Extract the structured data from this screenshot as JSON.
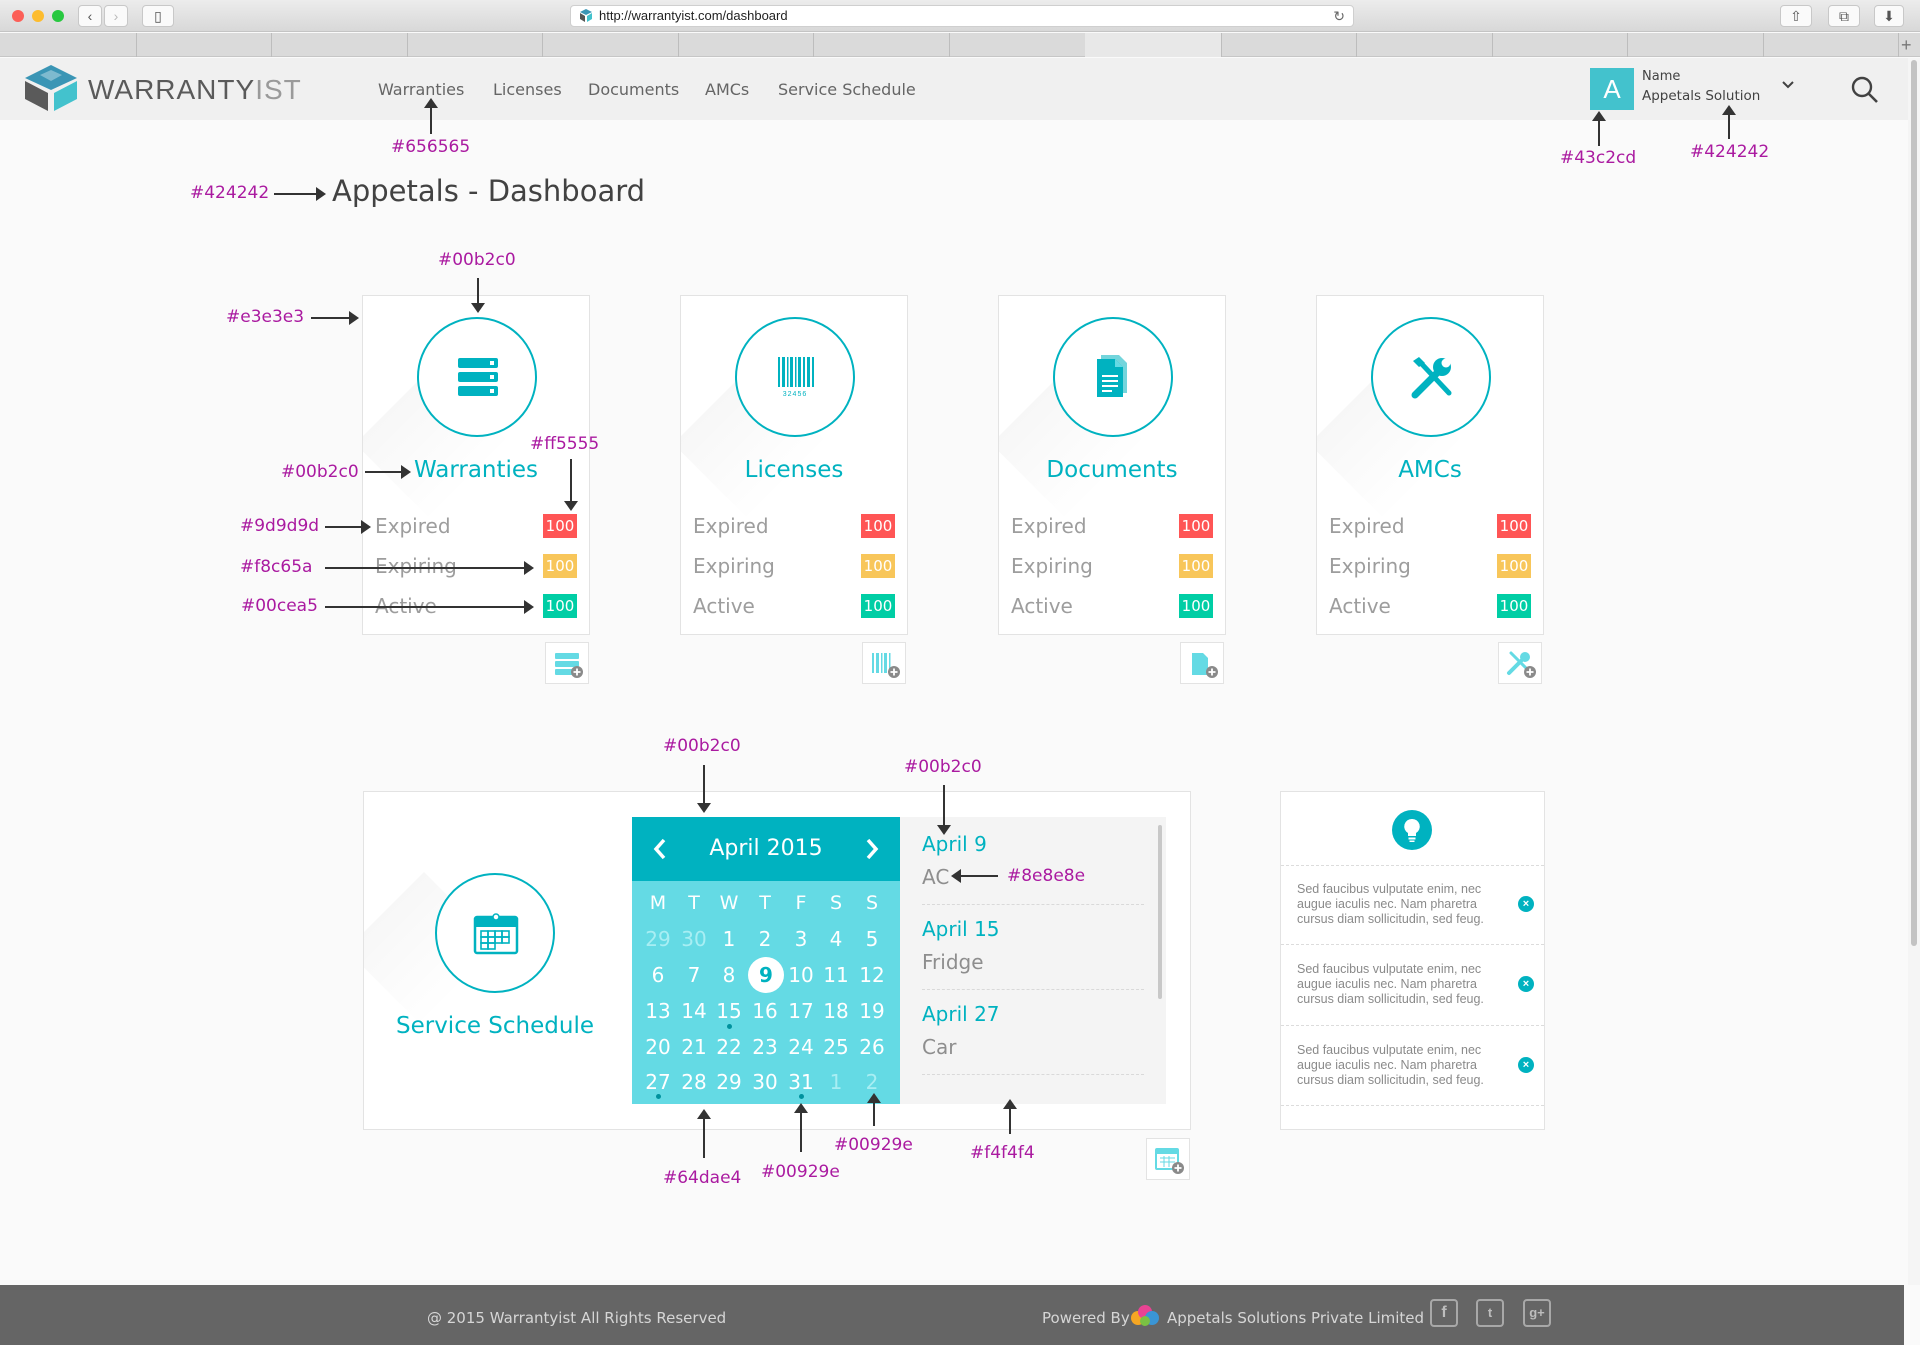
{
  "browser": {
    "url": "http://warrantyist.com/dashboard"
  },
  "brand": {
    "logo_text_bold": "WARRANTY",
    "logo_text_light": "IST"
  },
  "nav": [
    "Warranties",
    "Licenses",
    "Documents",
    "AMCs",
    "Service Schedule"
  ],
  "user": {
    "initial": "A",
    "label": "Name",
    "name": "Appetals Solution"
  },
  "page_title": "Appetals - Dashboard",
  "cards": [
    {
      "title": "Warranties",
      "icon": "server-icon",
      "stats": [
        {
          "label": "Expired",
          "value": "100"
        },
        {
          "label": "Expiring",
          "value": "100"
        },
        {
          "label": "Active",
          "value": "100"
        }
      ]
    },
    {
      "title": "Licenses",
      "icon": "barcode-icon",
      "barcode_digits": "32456",
      "stats": [
        {
          "label": "Expired",
          "value": "100"
        },
        {
          "label": "Expiring",
          "value": "100"
        },
        {
          "label": "Active",
          "value": "100"
        }
      ]
    },
    {
      "title": "Documents",
      "icon": "document-icon",
      "stats": [
        {
          "label": "Expired",
          "value": "100"
        },
        {
          "label": "Expiring",
          "value": "100"
        },
        {
          "label": "Active",
          "value": "100"
        }
      ]
    },
    {
      "title": "AMCs",
      "icon": "tools-icon",
      "stats": [
        {
          "label": "Expired",
          "value": "100"
        },
        {
          "label": "Expiring",
          "value": "100"
        },
        {
          "label": "Active",
          "value": "100"
        }
      ]
    }
  ],
  "service_schedule": {
    "title": "Service Schedule",
    "calendar": {
      "month": "April 2015",
      "weekdays": [
        "M",
        "T",
        "W",
        "T",
        "F",
        "S",
        "S"
      ],
      "weeks": [
        [
          "29",
          "30",
          "1",
          "2",
          "3",
          "4",
          "5"
        ],
        [
          "6",
          "7",
          "8",
          "9",
          "10",
          "11",
          "12"
        ],
        [
          "13",
          "14",
          "15",
          "16",
          "17",
          "18",
          "19"
        ],
        [
          "20",
          "21",
          "22",
          "23",
          "24",
          "25",
          "26"
        ],
        [
          "27",
          "28",
          "29",
          "30",
          "31",
          "1",
          "2"
        ]
      ],
      "selected": "9"
    },
    "events": [
      {
        "date": "April 9",
        "name": "AC"
      },
      {
        "date": "April 15",
        "name": "Fridge"
      },
      {
        "date": "April 27",
        "name": "Car"
      }
    ]
  },
  "tips": {
    "icon": "lightbulb-icon",
    "items": [
      "Sed faucibus vulputate enim, nec augue iaculis nec. Nam pharetra cursus diam sollicitudin, sed feug.",
      "Sed faucibus vulputate enim, nec augue iaculis nec. Nam pharetra cursus diam sollicitudin, sed feug.",
      "Sed faucibus vulputate enim, nec augue iaculis nec. Nam pharetra cursus diam sollicitudin, sed feug."
    ]
  },
  "annotations": {
    "nav_color": "#656565",
    "avatar_color": "#43c2cd",
    "username_color": "#424242",
    "title_color": "#424242",
    "icon_color": "#00b2c0",
    "card_border": "#e3e3e3",
    "card_title_color": "#00b2c0",
    "expired_badge": "#ff5555",
    "label_color": "#9d9d9d",
    "expiring_badge": "#f8c65a",
    "active_badge": "#00cea5",
    "cal_header": "#00b2c0",
    "event_date": "#00b2c0",
    "event_name": "#8e8e8e",
    "cal_body": "#64dae4",
    "event_dot1": "#00929e",
    "event_dot2": "#00929e",
    "event_panel": "#f4f4f4"
  },
  "footer": {
    "copyright": "@ 2015 Warrantyist All Rights Reserved",
    "powered_by": "Powered By",
    "company": "Appetals Solutions Private Limited",
    "social": [
      "f",
      "t",
      "g+"
    ]
  }
}
